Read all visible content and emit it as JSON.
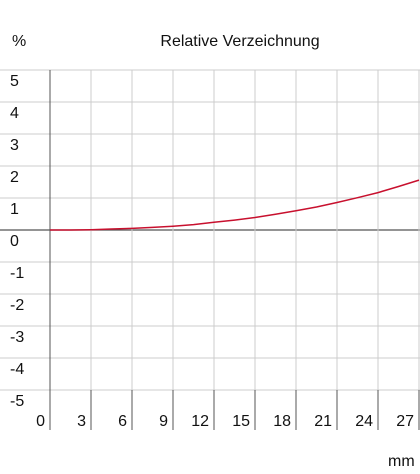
{
  "chart_data": {
    "type": "line",
    "title": "Relative Verzeichnung",
    "ylabel": "%",
    "xlabel": "mm",
    "x": [
      0,
      1.5,
      3,
      4.5,
      6,
      7.5,
      9,
      10.5,
      12,
      13.5,
      15,
      16.5,
      18,
      19.5,
      21,
      22.5,
      24,
      25.5,
      27
    ],
    "series": [
      {
        "name": null,
        "color": "#c8102e",
        "values": [
          0,
          0,
          0.01,
          0.03,
          0.05,
          0.08,
          0.12,
          0.17,
          0.24,
          0.31,
          0.39,
          0.49,
          0.6,
          0.72,
          0.86,
          1.01,
          1.17,
          1.36,
          1.56
        ]
      }
    ],
    "xlim": [
      0,
      27
    ],
    "xticks": [
      0,
      3,
      6,
      9,
      12,
      15,
      18,
      21,
      24,
      27
    ],
    "ylim": [
      -5,
      5
    ],
    "yticks": [
      5,
      4,
      3,
      2,
      1,
      0,
      -1,
      -2,
      -3,
      -4,
      -5
    ],
    "grid": true
  }
}
